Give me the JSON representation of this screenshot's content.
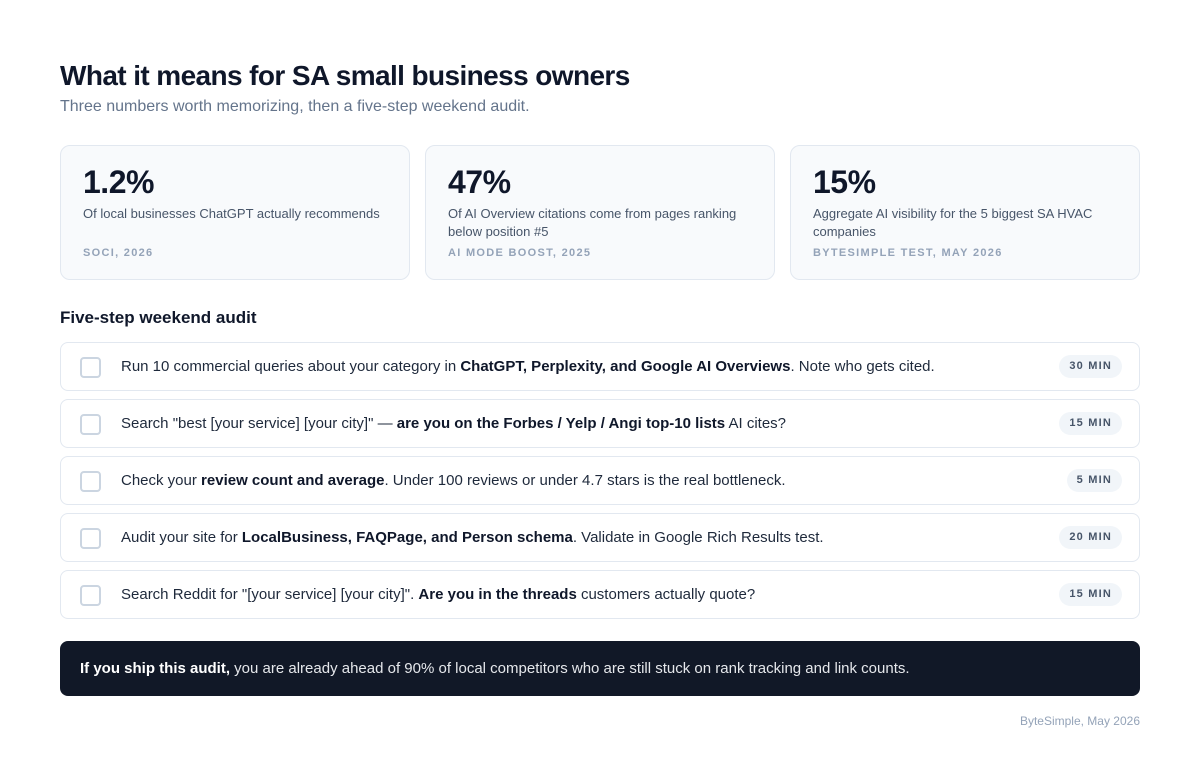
{
  "header": {
    "title": "What it means for SA small business owners",
    "subtitle": "Three numbers worth memorizing, then a five-step weekend audit."
  },
  "stats": [
    {
      "value": "1.2%",
      "description": "Of local businesses ChatGPT actually recommends",
      "source": "SOCI, 2026"
    },
    {
      "value": "47%",
      "description": "Of AI Overview citations come from pages ranking below position #5",
      "source": "AI MODE BOOST, 2025"
    },
    {
      "value": "15%",
      "description": "Aggregate AI visibility for the 5 biggest SA HVAC companies",
      "source": "BYTESIMPLE TEST, MAY 2026"
    }
  ],
  "audit": {
    "heading": "Five-step weekend audit",
    "steps": [
      {
        "pre": "Run 10 commercial queries about your category in ",
        "bold": "ChatGPT, Perplexity, and Google AI Overviews",
        "post": ". Note who gets cited.",
        "time": "30 MIN",
        "checked": false
      },
      {
        "pre": "Search \"best [your service] [your city]\" — ",
        "bold": "are you on the Forbes / Yelp / Angi top-10 lists",
        "post": " AI cites?",
        "time": "15 MIN",
        "checked": false
      },
      {
        "pre": "Check your ",
        "bold": "review count and average",
        "post": ". Under 100 reviews or under 4.7 stars is the real bottleneck.",
        "time": "5 MIN",
        "checked": false
      },
      {
        "pre": "Audit your site for ",
        "bold": "LocalBusiness, FAQPage, and Person schema",
        "post": ". Validate in Google Rich Results test.",
        "time": "20 MIN",
        "checked": false
      },
      {
        "pre": "Search Reddit for \"[your service] [your city]\". ",
        "bold": "Are you in the threads",
        "post": " customers actually quote?",
        "time": "15 MIN",
        "checked": false
      }
    ]
  },
  "banner": {
    "bold": "If you ship this audit,",
    "text": " you are already ahead of 90% of local competitors who are still stuck on rank tracking and link counts."
  },
  "footer": {
    "credit": "ByteSimple, May 2026"
  }
}
